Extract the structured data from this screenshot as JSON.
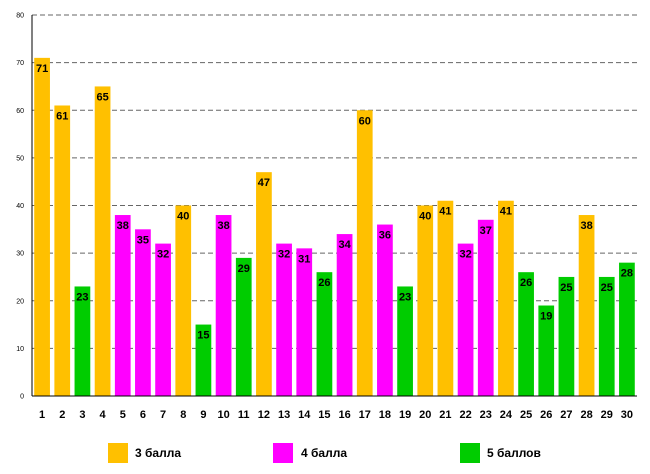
{
  "chart_data": {
    "type": "bar",
    "title": "",
    "xlabel": "",
    "ylabel": "",
    "ylim": [
      0,
      80
    ],
    "yticks": [
      0,
      10,
      20,
      30,
      40,
      50,
      60,
      70,
      80
    ],
    "grid": true,
    "legend_position": "bottom",
    "categories": [
      "1",
      "2",
      "3",
      "4",
      "5",
      "6",
      "7",
      "8",
      "9",
      "10",
      "11",
      "12",
      "13",
      "14",
      "15",
      "16",
      "17",
      "18",
      "19",
      "20",
      "21",
      "22",
      "23",
      "24",
      "25",
      "26",
      "27",
      "28",
      "29",
      "30"
    ],
    "values": [
      71,
      61,
      23,
      65,
      38,
      35,
      32,
      40,
      15,
      38,
      29,
      47,
      32,
      31,
      26,
      34,
      60,
      36,
      23,
      40,
      41,
      32,
      37,
      41,
      26,
      19,
      25,
      38,
      25,
      28
    ],
    "groups": [
      "g3",
      "g3",
      "g5",
      "g3",
      "g4",
      "g4",
      "g4",
      "g3",
      "g5",
      "g4",
      "g5",
      "g3",
      "g4",
      "g4",
      "g5",
      "g4",
      "g3",
      "g4",
      "g5",
      "g3",
      "g3",
      "g4",
      "g4",
      "g3",
      "g5",
      "g5",
      "g5",
      "g3",
      "g5",
      "g5"
    ],
    "series": [
      {
        "id": "g3",
        "name": "3 балла",
        "color": "#FFC000"
      },
      {
        "id": "g4",
        "name": "4 балла",
        "color": "#FF00FF"
      },
      {
        "id": "g5",
        "name": "5 баллов",
        "color": "#00CC00"
      }
    ]
  }
}
